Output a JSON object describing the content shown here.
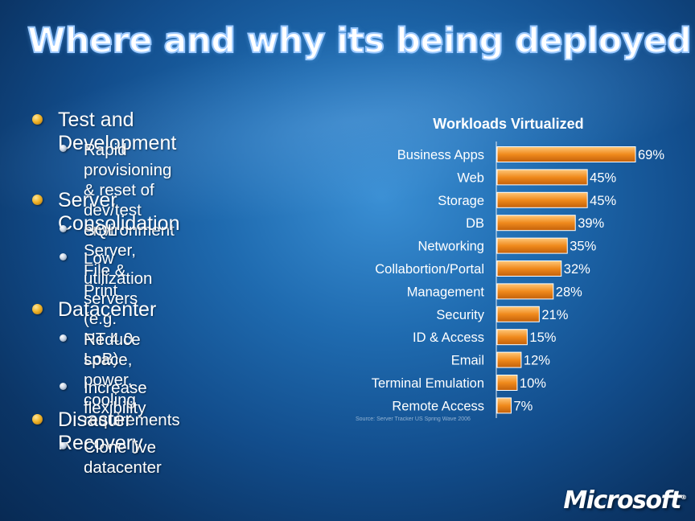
{
  "slide": {
    "title": "Where and why its being deployed"
  },
  "bullets": [
    {
      "label": "Test and Development",
      "sub": [
        "Rapid provisioning & reset of dev/test environment"
      ]
    },
    {
      "label": "Server Consolidation",
      "sub": [
        "SQL Server, File & Print",
        "Low utilization servers (e.g. NT 4.0 LoB)"
      ]
    },
    {
      "label": "Datacenter",
      "sub": [
        "Reduce space, power, cooling requirements",
        "Increase flexibility"
      ]
    },
    {
      "label": "Disaster Recovery",
      "sub": [
        "Clone live datacenter"
      ]
    }
  ],
  "sub_lines": {
    "rapid_1": "Rapid provisioning & reset of",
    "rapid_2": "dev/test environment",
    "sql": "SQL Server, File & Print",
    "lowutil_1": "Low utilization servers (e.g.",
    "lowutil_2": "NT 4.0 LoB)",
    "reduce_1": "Reduce space, power, cooling",
    "reduce_2": "requirements",
    "flex": "Increase flexibility",
    "clone": "Clone live datacenter"
  },
  "chart_data": {
    "type": "bar",
    "orientation": "horizontal",
    "title": "Workloads Virtualized",
    "categories": [
      "Business Apps",
      "Web",
      "Storage",
      "DB",
      "Networking",
      "Collabortion/Portal",
      "Management",
      "Security",
      "ID & Access",
      "Email",
      "Terminal Emulation",
      "Remote Access"
    ],
    "values": [
      69,
      45,
      45,
      39,
      35,
      32,
      28,
      21,
      15,
      12,
      10,
      7
    ],
    "value_labels": [
      "69%",
      "45%",
      "45%",
      "39%",
      "35%",
      "32%",
      "28%",
      "21%",
      "15%",
      "12%",
      "10%",
      "7%"
    ],
    "xlim": [
      0,
      69
    ],
    "grid": false,
    "legend": "none",
    "source": "Source: Server Tracker US Spring Wave 2006",
    "bar_color": "#f08a1c"
  },
  "brand": {
    "logo_text": "Microsoft",
    "logo_mark": "®"
  },
  "colors": {
    "background": "#1a5fa3",
    "bar": "#f08a1c",
    "bullet_level1": "#f1b62c",
    "bullet_level2": "#c9d6e6"
  }
}
